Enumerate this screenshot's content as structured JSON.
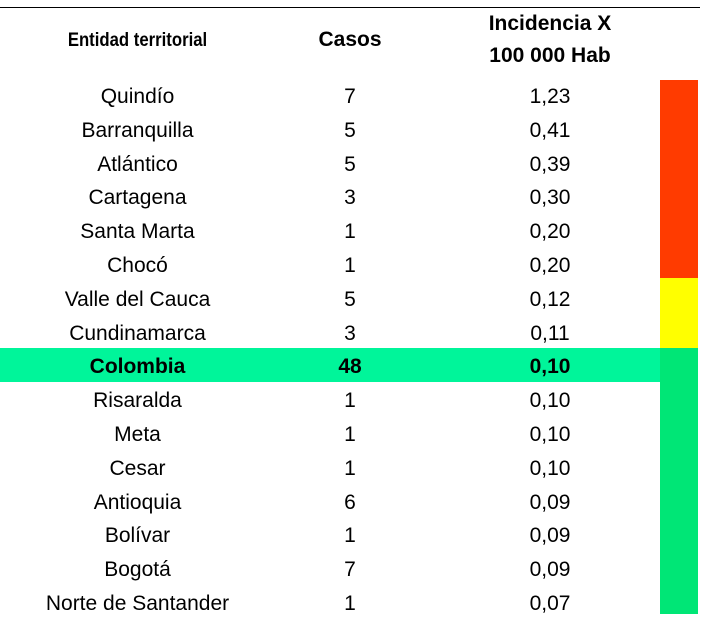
{
  "table": {
    "header": [
      "Entidad territorial",
      "Casos",
      "Incidencia X",
      "100 000 Hab"
    ],
    "rows": [
      [
        "Quindío",
        "7",
        "1,23"
      ],
      [
        "Barranquilla",
        "5",
        "0,41"
      ],
      [
        "Atlántico",
        "5",
        "0,39"
      ],
      [
        "Cartagena",
        "3",
        "0,30"
      ],
      [
        "Santa Marta",
        "1",
        "0,20"
      ],
      [
        "Chocó",
        "1",
        "0,20"
      ],
      [
        "Valle del Cauca",
        "5",
        "0,12"
      ],
      [
        "Cundinamarca",
        "3",
        "0,11"
      ],
      [
        "Colombia",
        "48",
        "0,10"
      ],
      [
        "Risaralda",
        "1",
        "0,10"
      ],
      [
        "Meta",
        "1",
        "0,10"
      ],
      [
        "Cesar",
        "1",
        "0,10"
      ],
      [
        "Antioquia",
        "6",
        "0,09"
      ],
      [
        "Bolívar",
        "1",
        "0,09"
      ],
      [
        "Bogotá",
        "7",
        "0,09"
      ],
      [
        "Norte de Santander",
        "1",
        "0,07"
      ]
    ]
  }
}
